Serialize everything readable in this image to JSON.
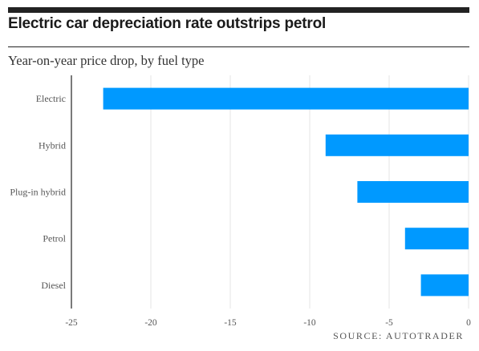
{
  "header": {
    "title": "Electric car depreciation rate outstrips petrol",
    "subtitle": "Year-on-year price drop, by fuel type"
  },
  "footer": {
    "source": "SOURCE: AUTOTRADER"
  },
  "colors": {
    "bar": "#0099ff",
    "rule": "#222222",
    "grid": "#e4e4e4",
    "text": "#555555"
  },
  "chart_data": {
    "type": "bar",
    "orientation": "horizontal",
    "categories": [
      "Electric",
      "Hybrid",
      "Plug-in hybrid",
      "Petrol",
      "Diesel"
    ],
    "values": [
      -23,
      -9,
      -7,
      -4,
      -3
    ],
    "xlim": [
      -25,
      0
    ],
    "xticks": [
      -25,
      -20,
      -15,
      -10,
      -5,
      0
    ],
    "title": "Electric car depreciation rate outstrips petrol",
    "subtitle": "Year-on-year price drop, by fuel type",
    "xlabel": "",
    "ylabel": "",
    "grid": true,
    "legend": "none"
  }
}
